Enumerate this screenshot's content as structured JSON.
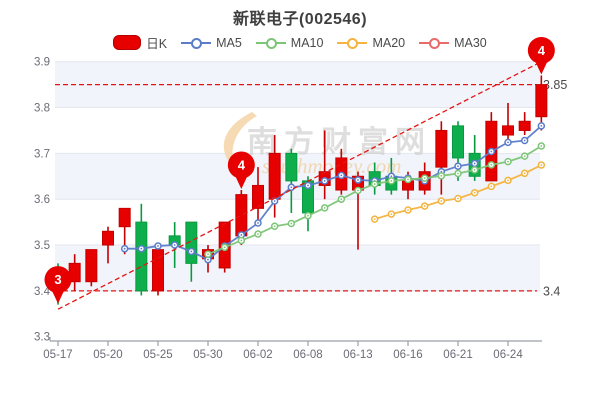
{
  "header": {
    "title": "新联电子(002546)"
  },
  "legend": {
    "items": [
      {
        "label": "日K",
        "type": "swatch",
        "color": "#e60000",
        "border": "#b40000"
      },
      {
        "label": "MA5",
        "type": "line",
        "color": "#5b7cc9"
      },
      {
        "label": "MA10",
        "type": "line",
        "color": "#7cc576"
      },
      {
        "label": "MA20",
        "type": "line",
        "color": "#f3b33e"
      },
      {
        "label": "MA30",
        "type": "line",
        "color": "#e96a6a"
      }
    ]
  },
  "watermark": {
    "text": "南方财富网",
    "subtext": "southmoney.com"
  },
  "chart_data": {
    "type": "candlestick",
    "title": "新联电子(002546)",
    "ylim": [
      3.3,
      3.9
    ],
    "yticks": [
      3.3,
      3.4,
      3.5,
      3.6,
      3.7,
      3.8,
      3.9
    ],
    "shaded_bands": [
      [
        3.8,
        3.9
      ],
      [
        3.6,
        3.7
      ],
      [
        3.4,
        3.5
      ]
    ],
    "x_tick_labels": [
      "05-17",
      "05-20",
      "05-25",
      "05-30",
      "06-02",
      "06-08",
      "06-13",
      "06-16",
      "06-21",
      "06-24"
    ],
    "x_tick_indices": [
      0,
      3,
      6,
      9,
      12,
      15,
      18,
      21,
      24,
      27
    ],
    "candles_ohlc": [
      [
        3.45,
        3.46,
        3.37,
        3.4
      ],
      [
        3.42,
        3.48,
        3.4,
        3.46
      ],
      [
        3.42,
        3.49,
        3.41,
        3.49
      ],
      [
        3.5,
        3.54,
        3.46,
        3.53
      ],
      [
        3.54,
        3.58,
        3.48,
        3.58
      ],
      [
        3.55,
        3.59,
        3.39,
        3.4
      ],
      [
        3.4,
        3.5,
        3.39,
        3.49
      ],
      [
        3.52,
        3.55,
        3.45,
        3.5
      ],
      [
        3.55,
        3.55,
        3.42,
        3.46
      ],
      [
        3.47,
        3.5,
        3.44,
        3.49
      ],
      [
        3.45,
        3.55,
        3.44,
        3.55
      ],
      [
        3.52,
        3.62,
        3.5,
        3.61
      ],
      [
        3.58,
        3.67,
        3.55,
        3.63
      ],
      [
        3.6,
        3.74,
        3.56,
        3.7
      ],
      [
        3.7,
        3.71,
        3.57,
        3.64
      ],
      [
        3.64,
        3.65,
        3.53,
        3.57
      ],
      [
        3.63,
        3.75,
        3.6,
        3.66
      ],
      [
        3.62,
        3.71,
        3.61,
        3.69
      ],
      [
        3.62,
        3.66,
        3.49,
        3.65
      ],
      [
        3.66,
        3.68,
        3.61,
        3.63
      ],
      [
        3.65,
        3.69,
        3.61,
        3.62
      ],
      [
        3.62,
        3.66,
        3.6,
        3.64
      ],
      [
        3.62,
        3.68,
        3.61,
        3.66
      ],
      [
        3.67,
        3.77,
        3.61,
        3.75
      ],
      [
        3.76,
        3.77,
        3.64,
        3.69
      ],
      [
        3.7,
        3.74,
        3.64,
        3.65
      ],
      [
        3.64,
        3.79,
        3.64,
        3.77
      ],
      [
        3.74,
        3.81,
        3.73,
        3.76
      ],
      [
        3.75,
        3.79,
        3.74,
        3.77
      ],
      [
        3.78,
        3.87,
        3.75,
        3.85
      ]
    ],
    "up_color": "#e60000",
    "up_border": "#c40000",
    "down_color": "#0fae4d",
    "down_border": "#089a40",
    "ma_lines": [
      {
        "name": "MA5",
        "window": 5,
        "color": "#5b7cc9"
      },
      {
        "name": "MA10",
        "window": 10,
        "color": "#7cc576"
      },
      {
        "name": "MA20",
        "window": 20,
        "color": "#f3b33e"
      },
      {
        "name": "MA30",
        "window": 30,
        "color": "#e96a6a"
      }
    ],
    "levels": [
      {
        "value": 3.85,
        "label": "3.85"
      },
      {
        "value": 3.4,
        "label": "3.4"
      }
    ],
    "trendline": {
      "from_index": 0,
      "from_value": 3.36,
      "to_index": 29,
      "to_value": 3.9
    },
    "annotations": [
      {
        "text": "3",
        "index": 0,
        "value": 3.37
      },
      {
        "text": "4",
        "index": 11,
        "value": 3.62
      },
      {
        "text": "4",
        "index": 29,
        "value": 3.87
      }
    ],
    "dash_color": "#e61414",
    "legend_position": "top",
    "grid": true
  }
}
